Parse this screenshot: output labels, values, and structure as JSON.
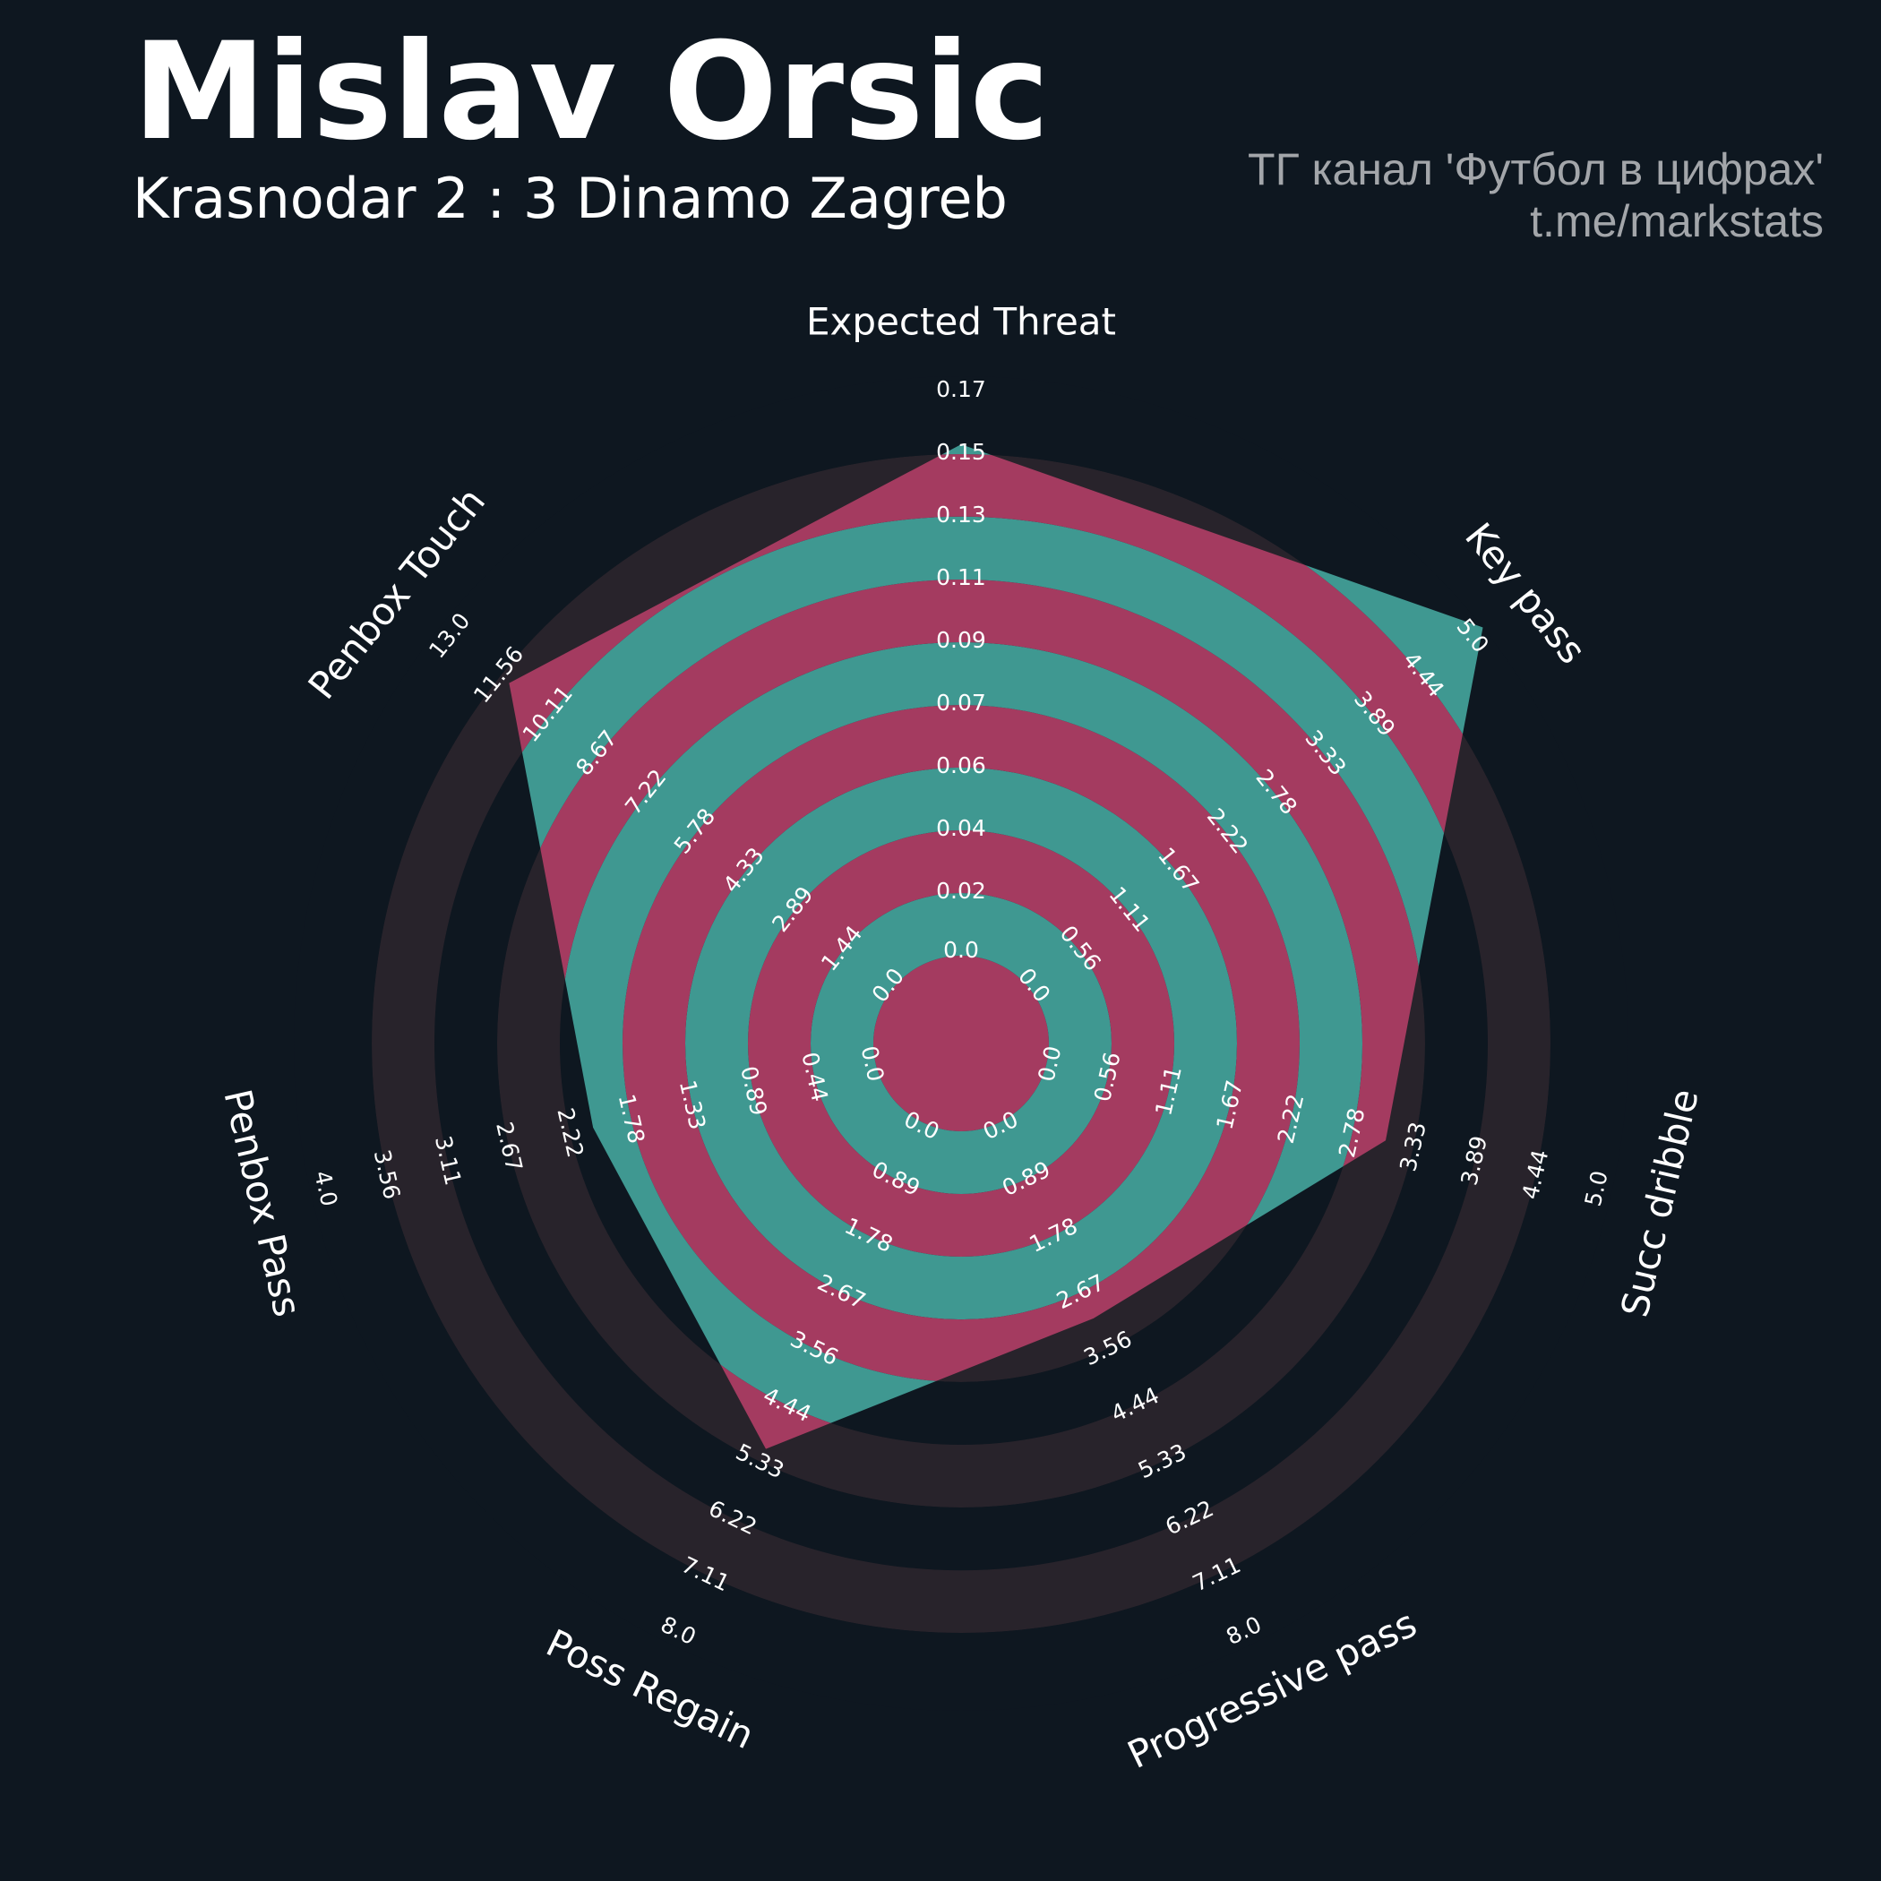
{
  "header": {
    "title": "Mislav Orsic",
    "subtitle": "Krasnodar 2 : 3 Dinamo Zagreb",
    "credit_line1": "ТГ канал 'Футбол в цифрах'",
    "credit_line2": "t.me/markstats"
  },
  "colors": {
    "background": "#0e1720",
    "band_outer": "#28232b",
    "band_inner_a": "#3f9891",
    "band_inner_b": "#a43b60",
    "text": "#ffffff",
    "credit": "#a3a6aa"
  },
  "chart_data": {
    "type": "radar",
    "title": "Mislav Orsic",
    "subtitle": "Krasnodar 2 : 3 Dinamo Zagreb",
    "grid": true,
    "axes": [
      {
        "label": "Expected Threat",
        "min": 0.0,
        "max": 0.17,
        "value": 0.15,
        "ticks": [
          "0.0",
          "0.02",
          "0.04",
          "0.06",
          "0.07",
          "0.09",
          "0.11",
          "0.13",
          "0.15",
          "0.17"
        ]
      },
      {
        "label": "Key pass",
        "min": 0.0,
        "max": 5.0,
        "value": 5.0,
        "ticks": [
          "0.0",
          "0.56",
          "1.11",
          "1.67",
          "2.22",
          "2.78",
          "3.33",
          "3.89",
          "4.44",
          "5.0"
        ]
      },
      {
        "label": "Succ dribble",
        "min": 0.0,
        "max": 5.0,
        "value": 3.0,
        "ticks": [
          "0.0",
          "0.56",
          "1.11",
          "1.67",
          "2.22",
          "2.78",
          "3.33",
          "3.89",
          "4.44",
          "5.0"
        ]
      },
      {
        "label": "Progressive pass",
        "min": 0.0,
        "max": 8.0,
        "value": 3.0,
        "ticks": [
          "0.0",
          "0.89",
          "1.78",
          "2.67",
          "3.56",
          "4.44",
          "5.33",
          "6.22",
          "7.11",
          "8.0"
        ]
      },
      {
        "label": "Poss Regain",
        "min": 0.0,
        "max": 8.0,
        "value": 5.0,
        "ticks": [
          "0.0",
          "0.89",
          "1.78",
          "2.67",
          "3.56",
          "4.44",
          "5.33",
          "6.22",
          "7.11",
          "8.0"
        ]
      },
      {
        "label": "Penbox Pass",
        "min": 0.0,
        "max": 4.0,
        "value": 2.0,
        "ticks": [
          "0.0",
          "0.44",
          "0.89",
          "1.33",
          "1.78",
          "2.22",
          "2.67",
          "3.11",
          "3.56",
          "4.0"
        ]
      },
      {
        "label": "Penbox Touch",
        "min": 0.0,
        "max": 13.0,
        "value": 11.0,
        "ticks": [
          "0.0",
          "1.44",
          "2.89",
          "4.33",
          "5.78",
          "7.22",
          "8.67",
          "10.11",
          "11.56",
          "13.0"
        ]
      }
    ]
  }
}
